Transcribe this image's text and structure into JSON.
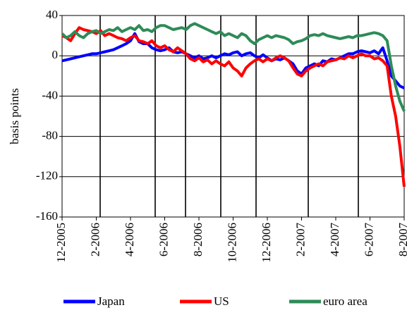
{
  "chart_data": {
    "type": "line",
    "y_label": "basis points",
    "categories": [
      "12-2005",
      null,
      null,
      null,
      null,
      null,
      null,
      null,
      "2-2006",
      null,
      null,
      null,
      null,
      null,
      null,
      null,
      "4-2006",
      null,
      null,
      null,
      null,
      null,
      null,
      null,
      "6-2006",
      null,
      null,
      null,
      null,
      null,
      null,
      null,
      "8-2006",
      null,
      null,
      null,
      null,
      null,
      null,
      null,
      "10-2006",
      null,
      null,
      null,
      null,
      null,
      null,
      null,
      "12-2006",
      null,
      null,
      null,
      null,
      null,
      null,
      null,
      "2-2007",
      null,
      null,
      null,
      null,
      null,
      null,
      null,
      "4-2007",
      null,
      null,
      null,
      null,
      null,
      null,
      null,
      "6-2007",
      null,
      null,
      null,
      null,
      null,
      null,
      null,
      "8-2007"
    ],
    "series": [
      {
        "name": "Japan",
        "color": "#0000ff",
        "values": [
          -5,
          -4,
          -3,
          -2,
          -1,
          0,
          1,
          2,
          2,
          3,
          4,
          5,
          6,
          8,
          10,
          12,
          15,
          22,
          14,
          12,
          12,
          8,
          6,
          5,
          6,
          8,
          4,
          3,
          4,
          2,
          0,
          -2,
          0,
          -3,
          -2,
          0,
          -2,
          0,
          2,
          1,
          3,
          4,
          0,
          2,
          3,
          0,
          -2,
          1,
          -2,
          -5,
          -3,
          -4,
          -2,
          -5,
          -8,
          -15,
          -18,
          -12,
          -10,
          -8,
          -10,
          -5,
          -6,
          -3,
          -4,
          -2,
          0,
          2,
          2,
          4,
          5,
          4,
          3,
          5,
          2,
          8,
          -5,
          -20,
          -25,
          -30,
          -32
        ]
      },
      {
        "name": "US",
        "color": "#ff0000",
        "values": [
          20,
          18,
          15,
          22,
          28,
          26,
          25,
          24,
          22,
          25,
          20,
          22,
          20,
          18,
          17,
          15,
          18,
          20,
          15,
          14,
          12,
          15,
          10,
          8,
          10,
          6,
          4,
          8,
          5,
          2,
          -3,
          -5,
          -2,
          -6,
          -4,
          -8,
          -5,
          -8,
          -10,
          -6,
          -12,
          -15,
          -20,
          -12,
          -8,
          -5,
          -3,
          -6,
          -3,
          -5,
          -2,
          0,
          -2,
          -5,
          -12,
          -18,
          -20,
          -15,
          -12,
          -10,
          -8,
          -10,
          -6,
          -5,
          -4,
          -2,
          -3,
          0,
          -2,
          0,
          2,
          0,
          0,
          -3,
          -2,
          -5,
          -10,
          -40,
          -60,
          -90,
          -130
        ]
      },
      {
        "name": "euro area",
        "color": "#2e8b57",
        "values": [
          22,
          18,
          20,
          24,
          20,
          18,
          22,
          24,
          25,
          22,
          24,
          26,
          25,
          28,
          24,
          26,
          28,
          26,
          30,
          25,
          26,
          24,
          28,
          30,
          30,
          28,
          26,
          27,
          28,
          26,
          30,
          32,
          30,
          28,
          26,
          24,
          22,
          24,
          20,
          22,
          20,
          18,
          22,
          20,
          15,
          12,
          16,
          18,
          20,
          18,
          20,
          19,
          18,
          16,
          12,
          14,
          15,
          17,
          20,
          21,
          20,
          22,
          20,
          19,
          18,
          17,
          18,
          19,
          18,
          20,
          20,
          21,
          22,
          23,
          22,
          20,
          15,
          -10,
          -30,
          -45,
          -55
        ]
      }
    ],
    "ylim": [
      -160,
      40
    ],
    "yticks": [
      40,
      0,
      -40,
      -80,
      -120,
      -160
    ],
    "grid": true
  }
}
